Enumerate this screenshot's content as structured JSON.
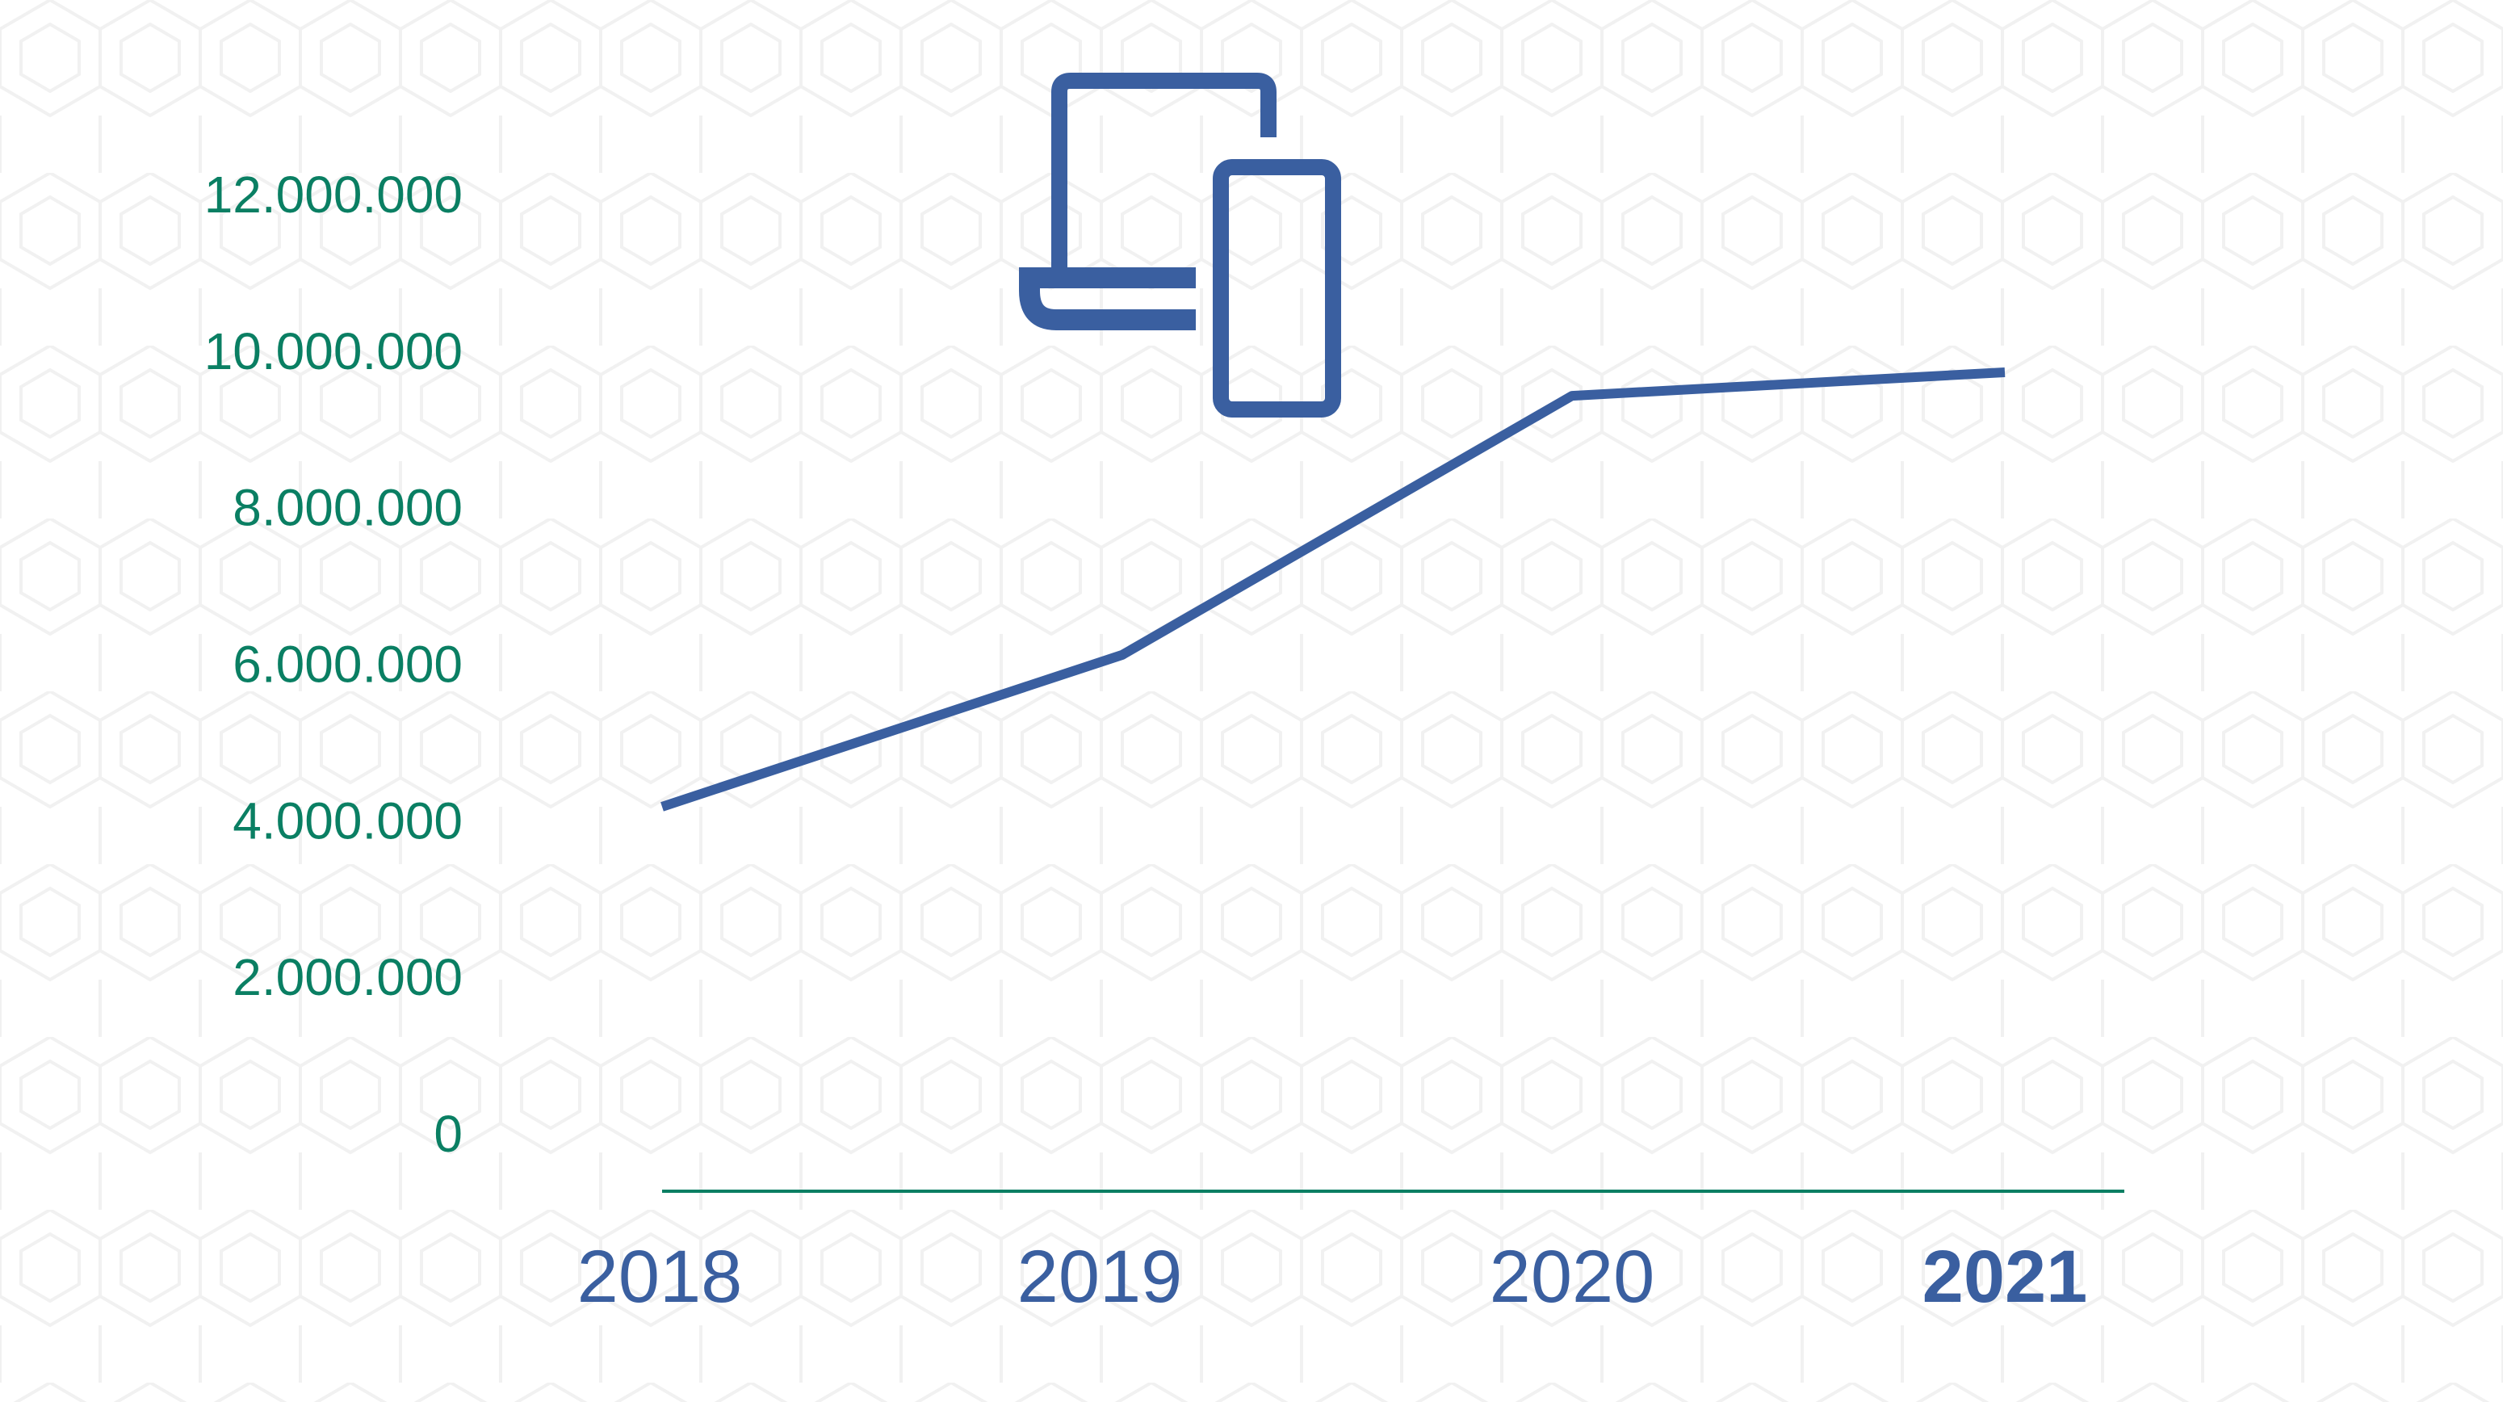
{
  "chart_data": {
    "type": "line",
    "title": "",
    "xlabel": "",
    "ylabel": "",
    "categories": [
      "2018",
      "2019",
      "2020",
      "2021"
    ],
    "highlighted_category": "2021",
    "series": [
      {
        "values": [
          4180000,
          6120000,
          9430000,
          9730000
        ]
      }
    ],
    "ylim": [
      0,
      12000000
    ],
    "y_ticks": [
      0,
      2000000,
      4000000,
      6000000,
      8000000,
      10000000,
      12000000
    ],
    "y_tick_labels": [
      "0",
      "2.000.000",
      "4.000.000",
      "6.000.000",
      "8.000.000",
      "10.000.000",
      "12.000.000"
    ],
    "grid": false,
    "legend": "none",
    "colors": {
      "line": "#3a5fa0",
      "axis": "#0a7f63",
      "y_labels": "#0a7f63",
      "x_labels": "#3a5fa0",
      "background_pattern": "#f2f2f2"
    },
    "icon": "laptop-and-mobile-devices-icon"
  }
}
